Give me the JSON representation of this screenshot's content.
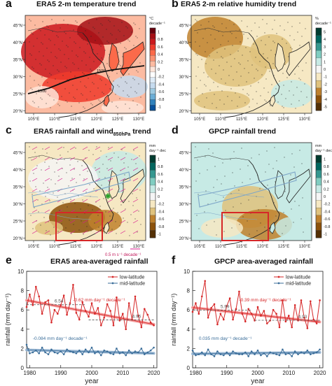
{
  "panels": {
    "a": {
      "letter": "a",
      "title": "ERA5 2-m temperature trend",
      "cbar_unit": "°C decade⁻¹",
      "cbar_ticks": [
        "1",
        "0.8",
        "0.6",
        "0.4",
        "0.2",
        "0",
        "-0.2",
        "-0.4",
        "-0.6",
        "-0.8",
        "-1"
      ],
      "cbar_colors": [
        "#67000d",
        "#a50f15",
        "#cb181d",
        "#ef3b2c",
        "#fb6a4a",
        "#fc9272",
        "#fcbba1",
        "#fee5d9",
        "#ffffff",
        "#deebf7",
        "#c6dbef",
        "#9ecae1",
        "#6baed6",
        "#3182bd",
        "#08519c"
      ],
      "contour_labels": [
        "1500",
        "1500"
      ]
    },
    "b": {
      "letter": "b",
      "title": "ERA5 2-m relative humidity trend",
      "cbar_unit": "% decade⁻¹",
      "cbar_ticks": [
        "5",
        "4",
        "3",
        "2",
        "1",
        "0",
        "-1",
        "-2",
        "-3",
        "-4",
        "-5"
      ],
      "cbar_colors": [
        "#003c30",
        "#01665e",
        "#35978f",
        "#80cdc1",
        "#c7eae5",
        "#f5f5f5",
        "#f6e8c3",
        "#dfc27d",
        "#bf812d",
        "#8c510a",
        "#543005"
      ]
    },
    "c": {
      "letter": "c",
      "title_main": "ERA5 rainfall and wind",
      "title_sub": "850hPa",
      "title_tail": " trend",
      "cbar_unit": "mm day⁻¹ decade⁻¹",
      "cbar_ticks": [
        "1",
        "0.8",
        "0.6",
        "0.4",
        "0.2",
        "0",
        "-0.2",
        "-0.4",
        "-0.6",
        "-0.8",
        "-1"
      ],
      "cbar_colors": [
        "#003c30",
        "#01665e",
        "#35978f",
        "#80cdc1",
        "#c7eae5",
        "#f5f5f5",
        "#f6e8c3",
        "#dfc27d",
        "#bf812d",
        "#8c510a",
        "#543005"
      ],
      "vector_ref": "0.5 m s⁻¹ decade⁻¹"
    },
    "d": {
      "letter": "d",
      "title": "GPCP rainfall trend",
      "cbar_unit": "mm day⁻¹ decade⁻¹",
      "cbar_ticks": [
        "1",
        "0.8",
        "0.6",
        "0.4",
        "0.2",
        "0",
        "-0.2",
        "-0.4",
        "-0.6",
        "-0.8",
        "-1"
      ],
      "cbar_colors": [
        "#003c30",
        "#01665e",
        "#35978f",
        "#80cdc1",
        "#c7eae5",
        "#f5f5f5",
        "#f6e8c3",
        "#dfc27d",
        "#bf812d",
        "#8c510a",
        "#543005"
      ]
    },
    "e": {
      "letter": "e",
      "title": "ERA5 area-averaged rainfall"
    },
    "f": {
      "letter": "f",
      "title": "GPCP area-averaged rainfall"
    }
  },
  "map_axes": {
    "lat_labels": [
      "45°N",
      "40°N",
      "35°N",
      "30°N",
      "25°N",
      "20°N"
    ],
    "lon_labels": [
      "105°E",
      "110°E",
      "115°E",
      "120°E",
      "125°E",
      "130°E"
    ]
  },
  "colors": {
    "low": "#d62728",
    "mid": "#3b6e9a",
    "lowfit": "#f4a0a0",
    "midfit": "#9fbbd6"
  },
  "chart_data": [
    {
      "type": "line",
      "title": "ERA5 area-averaged rainfall",
      "xlabel": "year",
      "ylabel": "rainfall (mm day⁻¹)",
      "xlim": [
        1979,
        2021
      ],
      "ylim": [
        0,
        10
      ],
      "xticks": [
        1980,
        1990,
        2000,
        2010,
        2020
      ],
      "yticks": [
        0,
        2,
        4,
        6,
        8,
        10
      ],
      "legend": "top-right",
      "x": [
        1979,
        1980,
        1981,
        1982,
        1983,
        1984,
        1985,
        1986,
        1987,
        1988,
        1989,
        1990,
        1991,
        1992,
        1993,
        1994,
        1995,
        1996,
        1997,
        1998,
        1999,
        2000,
        2001,
        2002,
        2003,
        2004,
        2005,
        2006,
        2007,
        2008,
        2009,
        2010,
        2011,
        2012,
        2013,
        2014,
        2015,
        2016,
        2017,
        2018,
        2019,
        2020
      ],
      "series": [
        {
          "name": "low-latitude",
          "values": [
            6.3,
            7.6,
            6.5,
            8.4,
            7.4,
            5.6,
            6.8,
            7.0,
            4.7,
            6.0,
            5.6,
            6.5,
            7.5,
            5.5,
            6.7,
            8.6,
            5.7,
            5.0,
            6.8,
            5.9,
            5.3,
            6.7,
            5.6,
            6.2,
            4.4,
            5.2,
            6.6,
            5.9,
            4.4,
            7.3,
            4.9,
            5.6,
            4.0,
            6.7,
            5.0,
            7.4,
            5.4,
            4.2,
            6.1,
            5.5,
            4.7,
            4.4
          ],
          "trend_label": "-0.62 mm day⁻¹ decade⁻¹",
          "fit": [
            7.0,
            4.5
          ]
        },
        {
          "name": "mid-latitude",
          "values": [
            2.4,
            1.5,
            1.6,
            1.8,
            1.5,
            2.1,
            1.6,
            1.4,
            1.9,
            1.6,
            1.5,
            1.7,
            1.4,
            1.9,
            1.7,
            1.6,
            1.5,
            1.8,
            1.4,
            1.9,
            1.6,
            2.1,
            1.5,
            1.7,
            1.3,
            1.8,
            1.7,
            1.5,
            1.4,
            2.0,
            1.5,
            1.6,
            1.3,
            1.8,
            1.5,
            1.7,
            1.6,
            2.0,
            1.4,
            1.6,
            1.8,
            2.1
          ],
          "trend_label": "-0.084 mm day⁻¹ decade⁻¹",
          "fit": [
            1.85,
            1.5
          ]
        }
      ],
      "annotations": [
        "6.54",
        "4.96"
      ],
      "period_means": [
        {
          "label": "6.54",
          "from": 1979,
          "to": 1998,
          "value": 6.54
        },
        {
          "label": "4.96",
          "from": 1999,
          "to": 2020,
          "value": 4.96
        }
      ]
    },
    {
      "type": "line",
      "title": "GPCP area-averaged rainfall",
      "xlabel": "year",
      "ylabel": "rainfall (mm day⁻¹)",
      "xlim": [
        1979,
        2021
      ],
      "ylim": [
        0,
        10
      ],
      "xticks": [
        1980,
        1990,
        2000,
        2010,
        2020
      ],
      "yticks": [
        0,
        2,
        4,
        6,
        8,
        10
      ],
      "legend": "top-right",
      "x": [
        1979,
        1980,
        1981,
        1982,
        1983,
        1984,
        1985,
        1986,
        1987,
        1988,
        1989,
        1990,
        1991,
        1992,
        1993,
        1994,
        1995,
        1996,
        1997,
        1998,
        1999,
        2000,
        2001,
        2002,
        2003,
        2004,
        2005,
        2006,
        2007,
        2008,
        2009,
        2010,
        2011,
        2012,
        2013,
        2014,
        2015,
        2016,
        2017,
        2018,
        2019,
        2020
      ],
      "series": [
        {
          "name": "low-latitude",
          "values": [
            5.8,
            6.7,
            5.6,
            7.4,
            9.0,
            5.2,
            6.2,
            6.6,
            4.5,
            5.6,
            5.0,
            6.4,
            7.2,
            5.0,
            6.1,
            7.9,
            5.6,
            4.8,
            6.1,
            5.6,
            4.9,
            6.3,
            5.4,
            5.9,
            4.6,
            4.9,
            6.0,
            5.6,
            4.2,
            7.0,
            4.8,
            5.4,
            4.2,
            6.5,
            4.9,
            7.0,
            5.2,
            4.1,
            6.9,
            5.0,
            4.6,
            7.0
          ],
          "trend_label": "-0.39 mm day⁻¹ decade⁻¹",
          "fit": [
            6.25,
            4.75
          ]
        },
        {
          "name": "mid-latitude",
          "values": [
            1.8,
            1.3,
            1.4,
            1.6,
            1.3,
            1.9,
            1.4,
            1.2,
            1.7,
            1.4,
            1.3,
            1.6,
            1.3,
            1.7,
            1.5,
            1.4,
            1.4,
            1.6,
            1.2,
            1.7,
            1.4,
            1.8,
            1.3,
            1.5,
            1.2,
            1.6,
            1.5,
            1.4,
            1.3,
            1.9,
            1.4,
            1.5,
            1.2,
            1.7,
            1.4,
            1.6,
            1.5,
            1.8,
            1.4,
            1.5,
            1.6,
            1.9
          ],
          "trend_label": "0.035 mm day⁻¹ decade⁻¹",
          "fit": [
            1.45,
            1.6
          ]
        }
      ],
      "annotations": [
        "5.99",
        "4.93"
      ],
      "period_means": [
        {
          "label": "5.99",
          "from": 1979,
          "to": 1998,
          "value": 5.99
        },
        {
          "label": "4.93",
          "from": 1999,
          "to": 2020,
          "value": 4.93
        }
      ]
    }
  ]
}
